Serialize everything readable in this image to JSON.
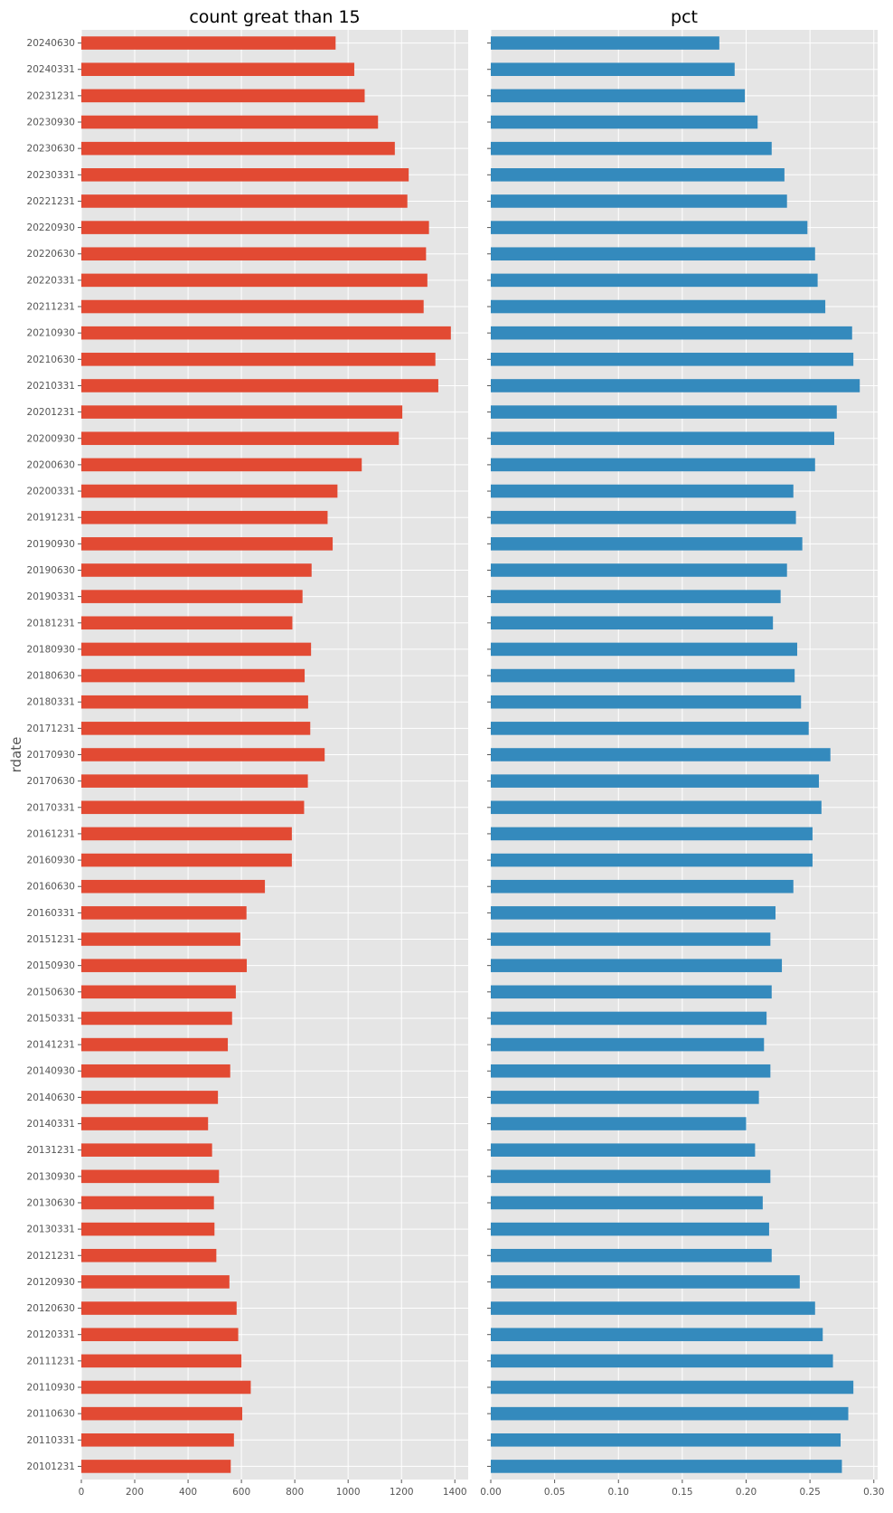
{
  "chart_data": [
    {
      "type": "bar",
      "orientation": "horizontal",
      "title": "count great than 15",
      "ylabel": "rdate",
      "xlabel": "",
      "xlim": [
        0,
        1450
      ],
      "xticks": [
        0,
        200,
        400,
        600,
        800,
        1000,
        1200,
        1400
      ],
      "grid": true,
      "color": "#E24A33",
      "categories": [
        "20240630",
        "20240331",
        "20231231",
        "20230930",
        "20230630",
        "20230331",
        "20221231",
        "20220930",
        "20220630",
        "20220331",
        "20211231",
        "20210930",
        "20210630",
        "20210331",
        "20201231",
        "20200930",
        "20200630",
        "20200331",
        "20191231",
        "20190930",
        "20190630",
        "20190331",
        "20181231",
        "20180930",
        "20180630",
        "20180331",
        "20171231",
        "20170930",
        "20170630",
        "20170331",
        "20161231",
        "20160930",
        "20160630",
        "20160331",
        "20151231",
        "20150930",
        "20150630",
        "20150331",
        "20141231",
        "20140930",
        "20140630",
        "20140331",
        "20131231",
        "20130930",
        "20130630",
        "20130331",
        "20121231",
        "20120930",
        "20120630",
        "20120331",
        "20111231",
        "20110930",
        "20110630",
        "20110331",
        "20101231"
      ],
      "values": [
        953,
        1023,
        1062,
        1112,
        1175,
        1227,
        1222,
        1303,
        1292,
        1297,
        1283,
        1385,
        1327,
        1338,
        1203,
        1190,
        1051,
        960,
        923,
        942,
        863,
        829,
        791,
        861,
        837,
        850,
        858,
        912,
        849,
        835,
        789,
        789,
        688,
        619,
        596,
        620,
        579,
        565,
        549,
        558,
        512,
        475,
        490,
        516,
        497,
        499,
        506,
        555,
        582,
        588,
        600,
        635,
        603,
        572,
        560
      ]
    },
    {
      "type": "bar",
      "orientation": "horizontal",
      "title": "pct",
      "xlabel": "",
      "xlim": [
        0,
        0.303
      ],
      "xticks": [
        0.0,
        0.05,
        0.1,
        0.15,
        0.2,
        0.25,
        0.3
      ],
      "xtick_labels": [
        "0.00",
        "0.05",
        "0.10",
        "0.15",
        "0.20",
        "0.25",
        "0.30"
      ],
      "grid": true,
      "color": "#348ABD",
      "categories": [
        "20240630",
        "20240331",
        "20231231",
        "20230930",
        "20230630",
        "20230331",
        "20221231",
        "20220930",
        "20220630",
        "20220331",
        "20211231",
        "20210930",
        "20210630",
        "20210331",
        "20201231",
        "20200930",
        "20200630",
        "20200331",
        "20191231",
        "20190930",
        "20190630",
        "20190331",
        "20181231",
        "20180930",
        "20180630",
        "20180331",
        "20171231",
        "20170930",
        "20170630",
        "20170331",
        "20161231",
        "20160930",
        "20160630",
        "20160331",
        "20151231",
        "20150930",
        "20150630",
        "20150331",
        "20141231",
        "20140930",
        "20140630",
        "20140331",
        "20131231",
        "20130930",
        "20130630",
        "20130331",
        "20121231",
        "20120930",
        "20120630",
        "20120331",
        "20111231",
        "20110930",
        "20110630",
        "20110331",
        "20101231"
      ],
      "values": [
        0.179,
        0.191,
        0.199,
        0.209,
        0.22,
        0.23,
        0.232,
        0.248,
        0.254,
        0.256,
        0.262,
        0.283,
        0.284,
        0.289,
        0.271,
        0.269,
        0.254,
        0.237,
        0.239,
        0.244,
        0.232,
        0.227,
        0.221,
        0.24,
        0.238,
        0.243,
        0.249,
        0.266,
        0.257,
        0.259,
        0.252,
        0.252,
        0.237,
        0.223,
        0.219,
        0.228,
        0.22,
        0.216,
        0.214,
        0.219,
        0.21,
        0.2,
        0.207,
        0.219,
        0.213,
        0.218,
        0.22,
        0.242,
        0.254,
        0.26,
        0.268,
        0.284,
        0.28,
        0.274,
        0.275
      ]
    }
  ]
}
